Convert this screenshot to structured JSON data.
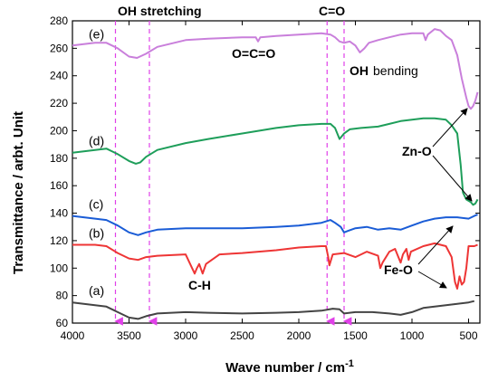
{
  "chart_data": {
    "type": "line",
    "xlabel": "Wave number / cm",
    "xlabel_superscript": "-1",
    "ylabel": "Transmittance / arbt. Unit",
    "xlim": [
      4000,
      400
    ],
    "ylim": [
      60,
      280
    ],
    "x_reversed": true,
    "x_ticks": [
      4000,
      3500,
      3000,
      2500,
      2000,
      1500,
      1000,
      500
    ],
    "y_ticks": [
      60,
      80,
      100,
      120,
      140,
      160,
      180,
      200,
      220,
      240,
      260,
      280
    ],
    "grid": false,
    "legend": "none",
    "series": [
      {
        "label": "(a)",
        "color": "#444444",
        "points": [
          [
            4000,
            75
          ],
          [
            3800,
            73
          ],
          [
            3700,
            72
          ],
          [
            3600,
            68
          ],
          [
            3500,
            64
          ],
          [
            3420,
            63
          ],
          [
            3350,
            65
          ],
          [
            3250,
            67
          ],
          [
            3000,
            68
          ],
          [
            2800,
            67.5
          ],
          [
            2500,
            67
          ],
          [
            2200,
            67.5
          ],
          [
            2000,
            68
          ],
          [
            1800,
            69
          ],
          [
            1700,
            70.5
          ],
          [
            1640,
            70
          ],
          [
            1600,
            67
          ],
          [
            1500,
            68
          ],
          [
            1350,
            68
          ],
          [
            1200,
            67
          ],
          [
            1100,
            66
          ],
          [
            1000,
            68
          ],
          [
            900,
            71
          ],
          [
            800,
            72
          ],
          [
            700,
            73
          ],
          [
            600,
            74
          ],
          [
            500,
            75
          ],
          [
            450,
            76
          ]
        ]
      },
      {
        "label": "(b)",
        "color": "#ee3535",
        "points": [
          [
            4000,
            117
          ],
          [
            3800,
            117
          ],
          [
            3700,
            116
          ],
          [
            3600,
            111
          ],
          [
            3500,
            107
          ],
          [
            3420,
            106
          ],
          [
            3350,
            108
          ],
          [
            3250,
            109
          ],
          [
            3000,
            110
          ],
          [
            2960,
            103
          ],
          [
            2920,
            96
          ],
          [
            2900,
            100
          ],
          [
            2880,
            103
          ],
          [
            2850,
            96
          ],
          [
            2820,
            103
          ],
          [
            2700,
            110
          ],
          [
            2500,
            111
          ],
          [
            2200,
            113
          ],
          [
            2000,
            115
          ],
          [
            1800,
            116
          ],
          [
            1760,
            116
          ],
          [
            1740,
            108
          ],
          [
            1730,
            102
          ],
          [
            1715,
            106
          ],
          [
            1700,
            110
          ],
          [
            1600,
            111
          ],
          [
            1500,
            108
          ],
          [
            1450,
            110
          ],
          [
            1400,
            112
          ],
          [
            1300,
            109
          ],
          [
            1280,
            100
          ],
          [
            1260,
            104
          ],
          [
            1200,
            112
          ],
          [
            1150,
            114
          ],
          [
            1120,
            108
          ],
          [
            1100,
            104
          ],
          [
            1080,
            110
          ],
          [
            1050,
            114
          ],
          [
            1030,
            106
          ],
          [
            1010,
            112
          ],
          [
            900,
            116
          ],
          [
            800,
            118
          ],
          [
            700,
            116
          ],
          [
            650,
            108
          ],
          [
            620,
            90
          ],
          [
            600,
            85
          ],
          [
            580,
            94
          ],
          [
            560,
            88
          ],
          [
            540,
            90
          ],
          [
            520,
            100
          ],
          [
            500,
            116
          ],
          [
            450,
            116
          ],
          [
            420,
            117
          ]
        ]
      },
      {
        "label": "(c)",
        "color": "#1a5cd6",
        "points": [
          [
            4000,
            138
          ],
          [
            3800,
            136
          ],
          [
            3700,
            135
          ],
          [
            3600,
            131
          ],
          [
            3500,
            126
          ],
          [
            3420,
            124
          ],
          [
            3350,
            126
          ],
          [
            3250,
            128
          ],
          [
            3000,
            129
          ],
          [
            2500,
            129
          ],
          [
            2200,
            130
          ],
          [
            2000,
            131
          ],
          [
            1800,
            133
          ],
          [
            1720,
            135
          ],
          [
            1680,
            133
          ],
          [
            1630,
            130
          ],
          [
            1600,
            126
          ],
          [
            1570,
            127
          ],
          [
            1500,
            129
          ],
          [
            1400,
            130
          ],
          [
            1300,
            128
          ],
          [
            1200,
            129
          ],
          [
            1100,
            128
          ],
          [
            1000,
            131
          ],
          [
            900,
            134
          ],
          [
            800,
            136
          ],
          [
            700,
            137
          ],
          [
            600,
            137
          ],
          [
            500,
            136
          ],
          [
            450,
            138
          ],
          [
            420,
            139
          ]
        ]
      },
      {
        "label": "(d)",
        "color": "#1e9e5a",
        "points": [
          [
            4000,
            184
          ],
          [
            3800,
            186
          ],
          [
            3700,
            187
          ],
          [
            3600,
            183
          ],
          [
            3500,
            178
          ],
          [
            3440,
            176
          ],
          [
            3400,
            177
          ],
          [
            3350,
            181
          ],
          [
            3250,
            186
          ],
          [
            3000,
            191
          ],
          [
            2800,
            194
          ],
          [
            2500,
            198
          ],
          [
            2200,
            202
          ],
          [
            2000,
            204
          ],
          [
            1800,
            205
          ],
          [
            1720,
            205
          ],
          [
            1680,
            202
          ],
          [
            1640,
            194
          ],
          [
            1600,
            198
          ],
          [
            1550,
            201
          ],
          [
            1450,
            202
          ],
          [
            1300,
            203
          ],
          [
            1200,
            205
          ],
          [
            1100,
            207
          ],
          [
            1000,
            208
          ],
          [
            900,
            209
          ],
          [
            800,
            209
          ],
          [
            700,
            208
          ],
          [
            650,
            204
          ],
          [
            600,
            198
          ],
          [
            570,
            175
          ],
          [
            550,
            155
          ],
          [
            520,
            150
          ],
          [
            500,
            149
          ],
          [
            480,
            148
          ],
          [
            460,
            146
          ],
          [
            440,
            147
          ],
          [
            420,
            150
          ]
        ]
      },
      {
        "label": "(e)",
        "color": "#c97fdb",
        "points": [
          [
            4000,
            262
          ],
          [
            3800,
            264
          ],
          [
            3700,
            264
          ],
          [
            3600,
            260
          ],
          [
            3500,
            254
          ],
          [
            3430,
            253
          ],
          [
            3350,
            256
          ],
          [
            3250,
            261
          ],
          [
            3000,
            266
          ],
          [
            2800,
            267
          ],
          [
            2500,
            268
          ],
          [
            2380,
            268
          ],
          [
            2360,
            265
          ],
          [
            2340,
            268
          ],
          [
            2200,
            269
          ],
          [
            2000,
            270
          ],
          [
            1800,
            271
          ],
          [
            1720,
            270
          ],
          [
            1680,
            268
          ],
          [
            1640,
            265
          ],
          [
            1600,
            264
          ],
          [
            1550,
            265
          ],
          [
            1500,
            262
          ],
          [
            1460,
            257
          ],
          [
            1420,
            260
          ],
          [
            1380,
            264
          ],
          [
            1300,
            266
          ],
          [
            1200,
            268
          ],
          [
            1100,
            270
          ],
          [
            1000,
            271
          ],
          [
            900,
            271
          ],
          [
            880,
            266
          ],
          [
            860,
            270
          ],
          [
            800,
            274
          ],
          [
            750,
            273
          ],
          [
            700,
            269
          ],
          [
            650,
            266
          ],
          [
            600,
            255
          ],
          [
            560,
            238
          ],
          [
            520,
            224
          ],
          [
            500,
            218
          ],
          [
            480,
            216
          ],
          [
            460,
            218
          ],
          [
            440,
            222
          ],
          [
            420,
            228
          ]
        ]
      }
    ],
    "annotations": {
      "oh_stretching": "OH stretching",
      "co_double": "C=O",
      "oco": "O=C=O",
      "oh_bending_oh": "OH",
      "oh_bending_word": "bending",
      "ch": "C-H",
      "zno": "Zn-O",
      "feo": "Fe-O"
    },
    "vline_markers": [
      3620,
      3320,
      1750,
      1600
    ],
    "marker_color": "#e040e8"
  }
}
